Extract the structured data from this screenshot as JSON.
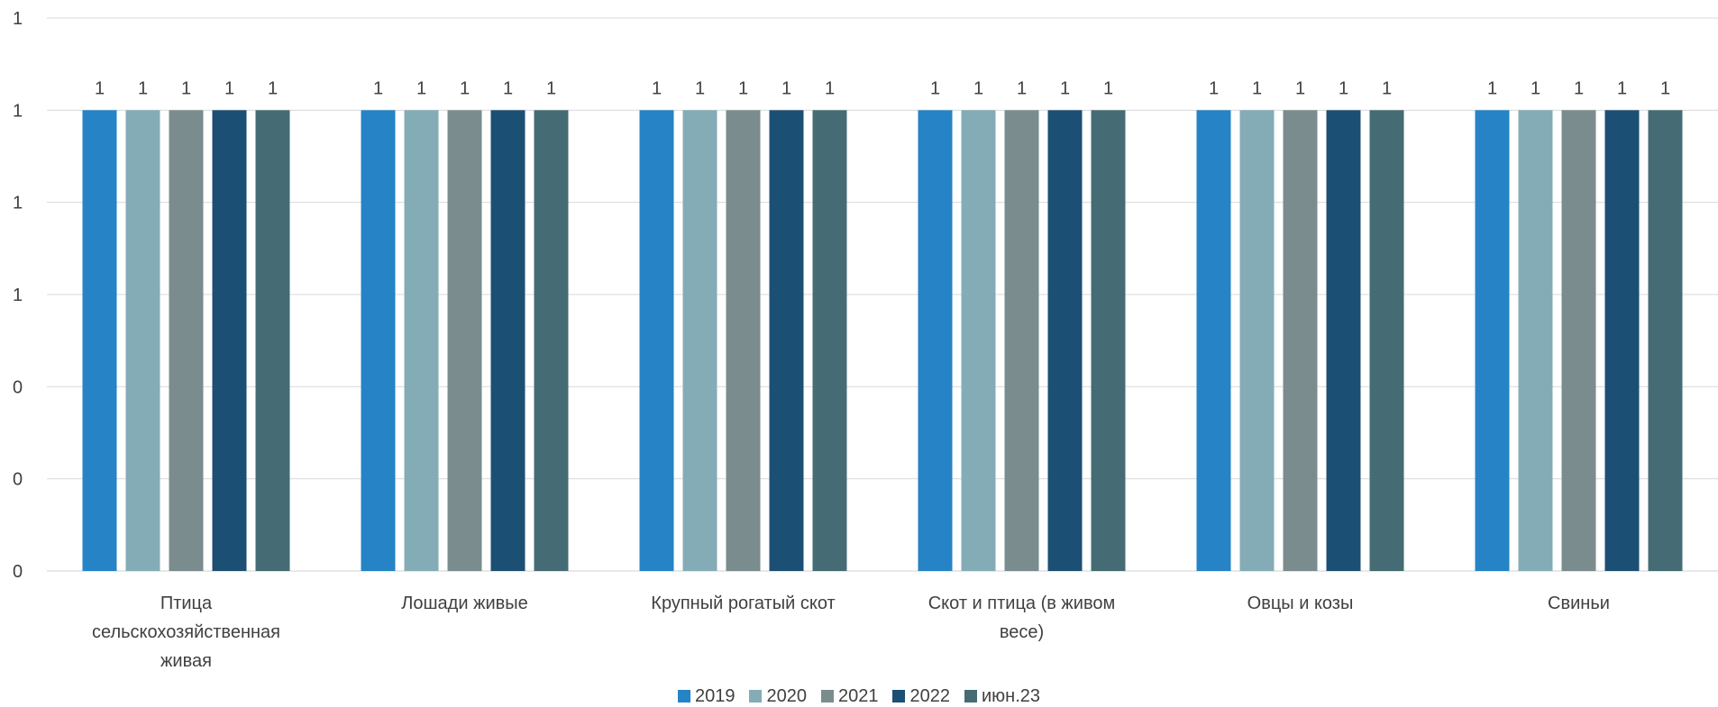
{
  "chart_data": {
    "type": "bar",
    "title": "",
    "xlabel": "",
    "ylabel": "",
    "categories": [
      [
        "Птица",
        "сельскохозяйственная",
        "живая"
      ],
      [
        "Лошади живые"
      ],
      [
        "Крупный рогатый скот"
      ],
      [
        "Скот и птица (в живом",
        "весе)"
      ],
      [
        "Овцы и козы"
      ],
      [
        "Свиньи"
      ]
    ],
    "y_tick_labels": [
      "0",
      "0",
      "0",
      "1",
      "1",
      "1",
      "1"
    ],
    "ylim": [
      0,
      1.2
    ],
    "grid": true,
    "legend_position": "bottom",
    "series": [
      {
        "name": "2019",
        "color": "#2683c6",
        "values": [
          1,
          1,
          1,
          1,
          1,
          1
        ],
        "labels": [
          "1",
          "1",
          "1",
          "1",
          "1",
          "1"
        ]
      },
      {
        "name": "2020",
        "color": "#84acb6",
        "values": [
          1,
          1,
          1,
          1,
          1,
          1
        ],
        "labels": [
          "1",
          "1",
          "1",
          "1",
          "1",
          "1"
        ]
      },
      {
        "name": "2021",
        "color": "#7a8c8e",
        "values": [
          1,
          1,
          1,
          1,
          1,
          1
        ],
        "labels": [
          "1",
          "1",
          "1",
          "1",
          "1",
          "1"
        ]
      },
      {
        "name": "2022",
        "color": "#1c4f74",
        "values": [
          1,
          1,
          1,
          1,
          1,
          1
        ],
        "labels": [
          "1",
          "1",
          "1",
          "1",
          "1",
          "1"
        ]
      },
      {
        "name": "июн.23",
        "color": "#456c74",
        "values": [
          1,
          1,
          1,
          1,
          1,
          1
        ],
        "labels": [
          "1",
          "1",
          "1",
          "1",
          "1",
          "1"
        ]
      }
    ]
  }
}
